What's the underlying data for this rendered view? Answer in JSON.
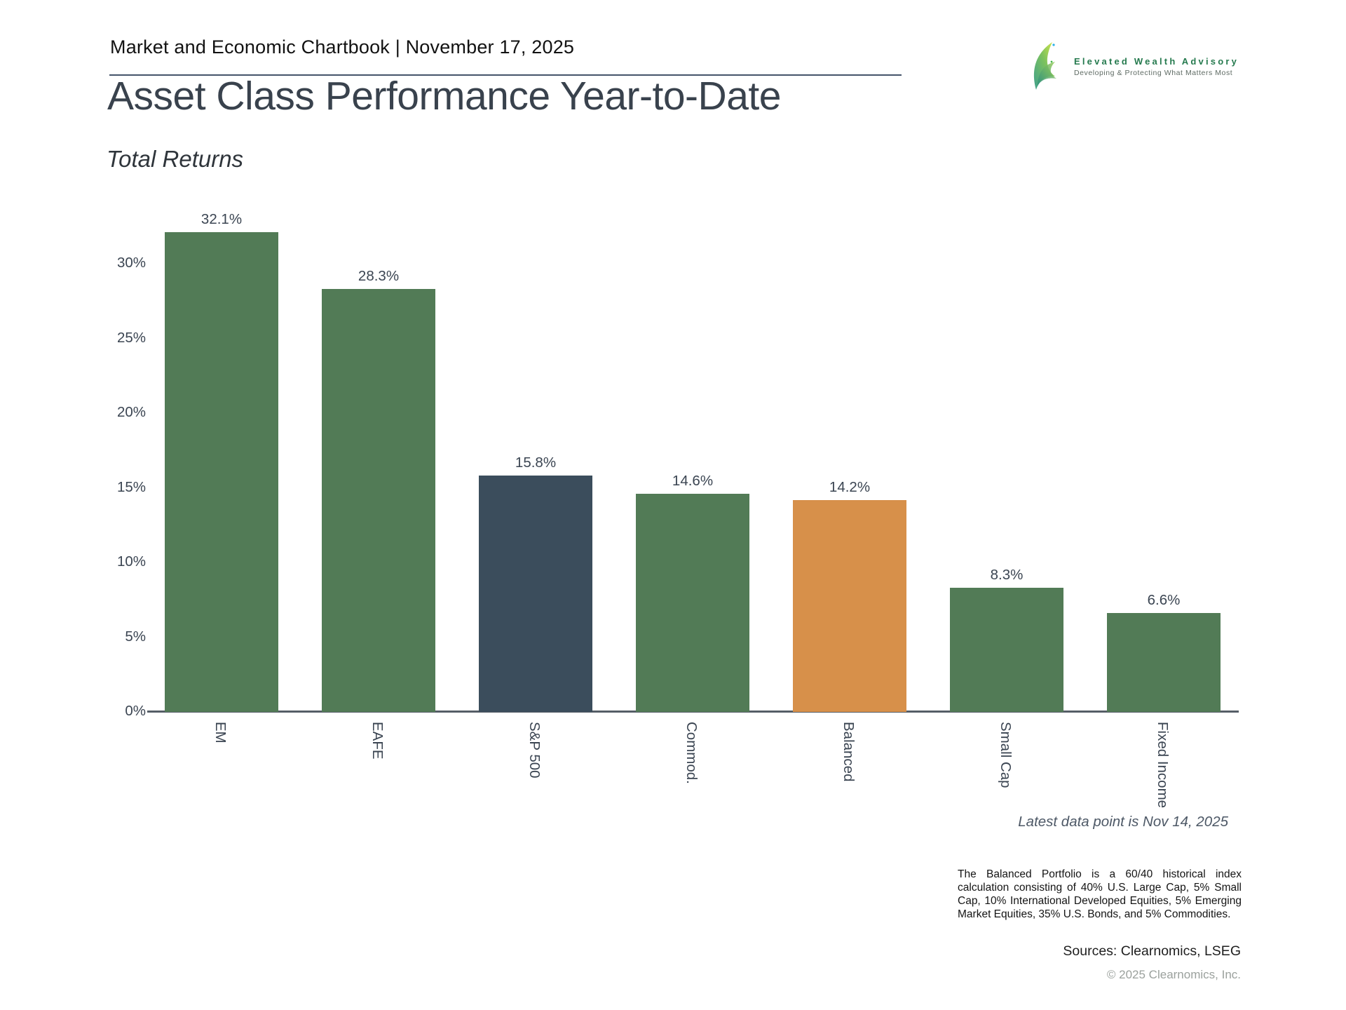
{
  "header": {
    "title_line": "Market and Economic Chartbook | November 17, 2025"
  },
  "logo": {
    "name": "Elevated Wealth Advisory",
    "tagline": "Developing & Protecting What Matters Most"
  },
  "title": "Asset Class Performance Year-to-Date",
  "subtitle": "Total Returns",
  "chart_data": {
    "type": "bar",
    "categories": [
      "EM",
      "EAFE",
      "S&P 500",
      "Commod.",
      "Balanced",
      "Small Cap",
      "Fixed Income"
    ],
    "values": [
      32.1,
      28.3,
      15.8,
      14.6,
      14.2,
      8.3,
      6.6
    ],
    "value_labels": [
      "32.1%",
      "28.3%",
      "15.8%",
      "14.6%",
      "14.2%",
      "8.3%",
      "6.6%"
    ],
    "bar_colors": [
      "#527b56",
      "#527b56",
      "#3b4d5c",
      "#527b56",
      "#d7904a",
      "#527b56",
      "#527b56"
    ],
    "title": "Asset Class Performance Year-to-Date",
    "subtitle": "Total Returns",
    "xlabel": "",
    "ylabel": "",
    "ylim": [
      0,
      33
    ],
    "yticks": [
      0,
      5,
      10,
      15,
      20,
      25,
      30
    ],
    "ytick_labels": [
      "0%",
      "5%",
      "10%",
      "15%",
      "20%",
      "25%",
      "30%"
    ],
    "grid": false,
    "legend": "none"
  },
  "notes": {
    "latest_data_point": "Latest data point is Nov 14, 2025",
    "footnote": "The Balanced Portfolio is a 60/40 historical index calculation consisting of 40% U.S. Large Cap, 5% Small Cap, 10% International Developed Equities, 5% Emerging Market Equities, 35% U.S. Bonds, and 5% Commodities.",
    "sources": "Sources: Clearnomics, LSEG",
    "copyright": "© 2025 Clearnomics, Inc."
  }
}
